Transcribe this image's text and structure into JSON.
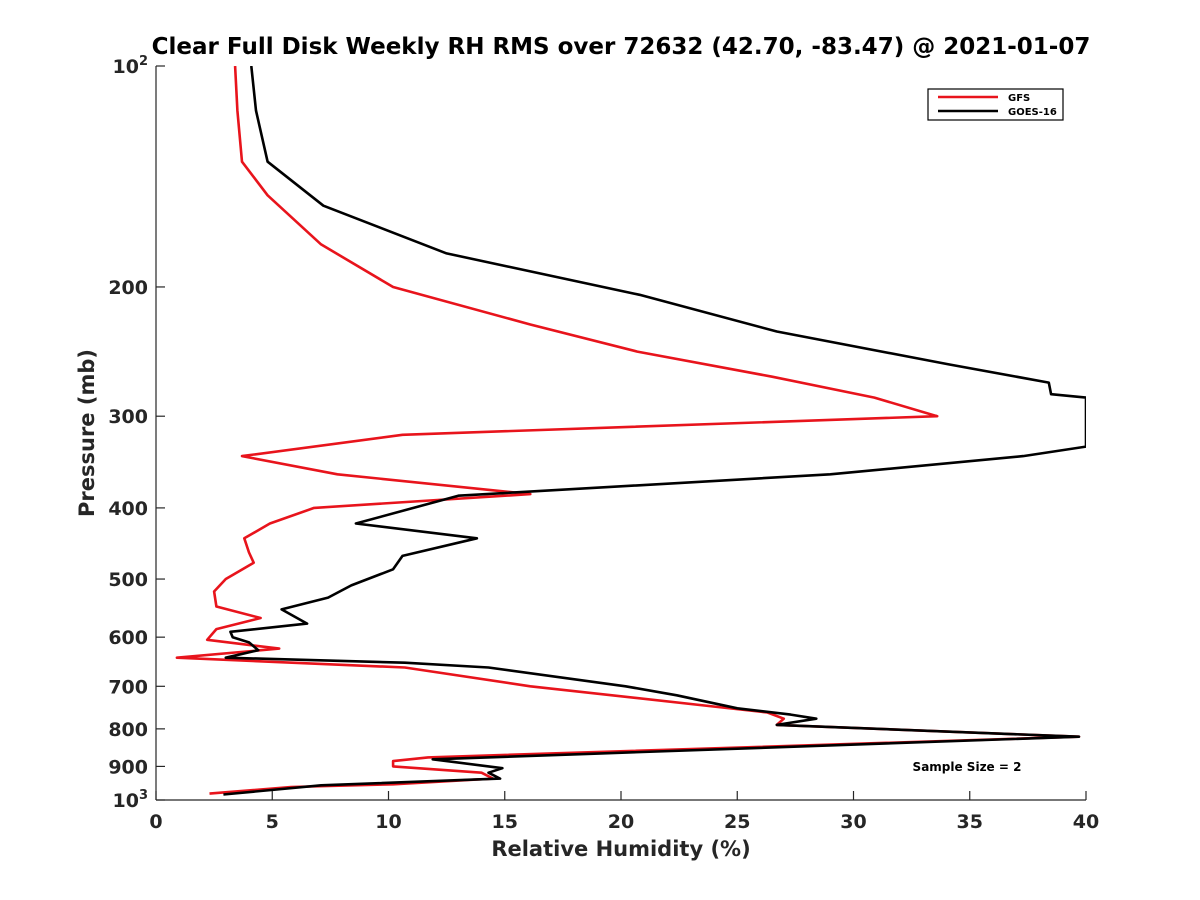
{
  "chart_data": {
    "type": "line",
    "title": "Clear Full Disk Weekly RH RMS over 72632 (42.70, -83.47) @ 2021-01-07",
    "xlabel": "Relative Humidity (%)",
    "ylabel": "Pressure (mb)",
    "xlim": [
      0,
      40
    ],
    "ylim": [
      100,
      1000
    ],
    "y_scale": "log",
    "y_reversed": true,
    "x_ticks": [
      "0",
      "5",
      "10",
      "15",
      "20",
      "25",
      "30",
      "35",
      "40"
    ],
    "y_ticks": [
      {
        "value": 100,
        "base": "10",
        "exp": "2"
      },
      {
        "value": 200,
        "label": "200"
      },
      {
        "value": 300,
        "label": "300"
      },
      {
        "value": 400,
        "label": "400"
      },
      {
        "value": 500,
        "label": "500"
      },
      {
        "value": 600,
        "label": "600"
      },
      {
        "value": 700,
        "label": "700"
      },
      {
        "value": 800,
        "label": "800"
      },
      {
        "value": 900,
        "label": "900"
      },
      {
        "value": 1000,
        "base": "10",
        "exp": "3"
      }
    ],
    "grid": false,
    "legend_position": "top-right",
    "annotation": "Sample Size = 2",
    "series": [
      {
        "name": "GFS",
        "color": "#e8141c",
        "points": [
          [
            3.4,
            100
          ],
          [
            3.5,
            115
          ],
          [
            3.7,
            135
          ],
          [
            4.8,
            150
          ],
          [
            7.1,
            175
          ],
          [
            10.2,
            200
          ],
          [
            16.1,
            225
          ],
          [
            20.7,
            245
          ],
          [
            26.5,
            265
          ],
          [
            30.9,
            283
          ],
          [
            33.6,
            300
          ],
          [
            10.6,
            318
          ],
          [
            3.7,
            340
          ],
          [
            7.8,
            360
          ],
          [
            16.1,
            383
          ],
          [
            6.8,
            400
          ],
          [
            4.9,
            420
          ],
          [
            3.8,
            440
          ],
          [
            4.0,
            460
          ],
          [
            4.2,
            475
          ],
          [
            3.0,
            500
          ],
          [
            2.5,
            520
          ],
          [
            2.6,
            545
          ],
          [
            4.5,
            565
          ],
          [
            2.6,
            585
          ],
          [
            2.2,
            605
          ],
          [
            5.3,
            622
          ],
          [
            0.9,
            640
          ],
          [
            10.7,
            660
          ],
          [
            16.1,
            700
          ],
          [
            26.3,
            760
          ],
          [
            27.0,
            775
          ],
          [
            26.7,
            790
          ],
          [
            39.7,
            820
          ],
          [
            11.7,
            875
          ],
          [
            10.2,
            885
          ],
          [
            10.2,
            900
          ],
          [
            14.0,
            918
          ],
          [
            14.5,
            935
          ],
          [
            10.2,
            952
          ],
          [
            5.8,
            960
          ],
          [
            2.3,
            980
          ]
        ]
      },
      {
        "name": "GOES-16",
        "color": "#000000",
        "points": [
          [
            4.1,
            100
          ],
          [
            4.3,
            115
          ],
          [
            4.8,
            135
          ],
          [
            7.2,
            155
          ],
          [
            12.5,
            180
          ],
          [
            20.8,
            205
          ],
          [
            26.7,
            230
          ],
          [
            34.1,
            255
          ],
          [
            38.4,
            270
          ],
          [
            38.5,
            280
          ],
          [
            40.0,
            283
          ],
          [
            40.0,
            330
          ],
          [
            37.3,
            340
          ],
          [
            29.0,
            360
          ],
          [
            13.0,
            385
          ],
          [
            8.6,
            420
          ],
          [
            13.8,
            440
          ],
          [
            10.6,
            465
          ],
          [
            10.2,
            485
          ],
          [
            8.4,
            510
          ],
          [
            7.4,
            530
          ],
          [
            5.4,
            550
          ],
          [
            6.5,
            575
          ],
          [
            3.2,
            590
          ],
          [
            3.3,
            600
          ],
          [
            4.0,
            610
          ],
          [
            4.4,
            625
          ],
          [
            3.0,
            640
          ],
          [
            10.7,
            650
          ],
          [
            14.3,
            660
          ],
          [
            20.2,
            700
          ],
          [
            22.4,
            720
          ],
          [
            25.0,
            750
          ],
          [
            27.3,
            765
          ],
          [
            28.4,
            775
          ],
          [
            26.7,
            790
          ],
          [
            39.7,
            820
          ],
          [
            18.7,
            865
          ],
          [
            11.9,
            880
          ],
          [
            14.9,
            905
          ],
          [
            14.3,
            918
          ],
          [
            14.8,
            935
          ],
          [
            7.1,
            955
          ],
          [
            2.9,
            983
          ]
        ]
      }
    ]
  }
}
